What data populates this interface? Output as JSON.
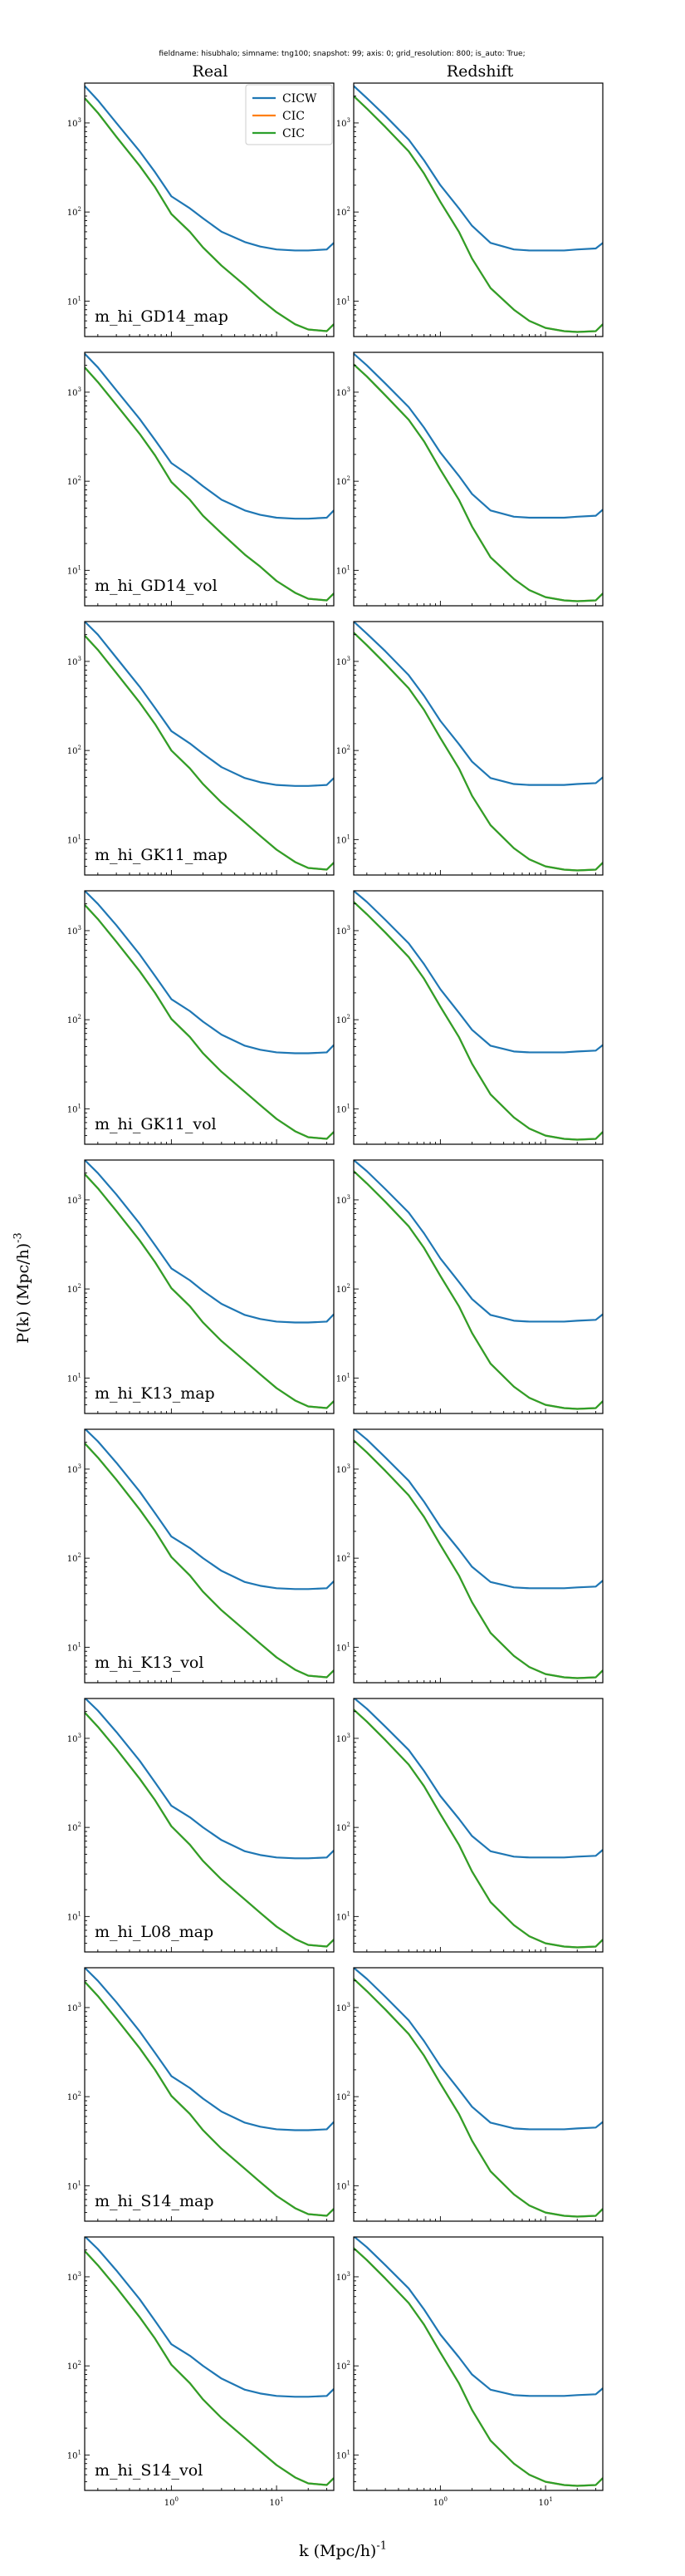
{
  "figure": {
    "suptitle": "fieldname: hisubhalo; simname: tng100; snapshot: 99; axis: 0; grid_resolution: 800; is_auto: True;",
    "column_titles": [
      "Real",
      "Redshift"
    ],
    "ylabel": "P(k) (Mpc/h)$^{-3}$",
    "xlabel": "k (Mpc/h)$^{-1}$",
    "legend": [
      {
        "label": "CICW",
        "color": "#1f77b4"
      },
      {
        "label": "CIC",
        "color": "#ff7f0e"
      },
      {
        "label": "CIC",
        "color": "#2ca02c"
      }
    ]
  },
  "chart_data": {
    "type": "line",
    "scale": {
      "x": "log",
      "y": "log"
    },
    "xlim": [
      0.15,
      35
    ],
    "ylim": [
      4,
      2800
    ],
    "xticks": [
      {
        "value": 1,
        "label": "10^0"
      },
      {
        "value": 10,
        "label": "10^1"
      }
    ],
    "yticks": [
      {
        "value": 10,
        "label": "10^1"
      },
      {
        "value": 100,
        "label": "10^2"
      },
      {
        "value": 1000,
        "label": "10^3"
      }
    ],
    "x": [
      0.15,
      0.2,
      0.3,
      0.5,
      0.7,
      1.0,
      1.5,
      2.0,
      3.0,
      5.0,
      7.0,
      10,
      15,
      20,
      30,
      35
    ],
    "rows": [
      {
        "name": "m_hi_GD14_map",
        "real": {
          "CICW": [
            2600,
            1800,
            1000,
            480,
            280,
            150,
            110,
            85,
            60,
            46,
            41,
            38,
            37,
            37,
            38,
            45
          ],
          "CIC": [
            1900,
            1300,
            700,
            330,
            190,
            95,
            60,
            40,
            25,
            15,
            10.5,
            7.5,
            5.5,
            4.8,
            4.6,
            5.5
          ]
        },
        "redshift": {
          "CICW": [
            2600,
            1900,
            1200,
            650,
            380,
            200,
            110,
            70,
            45,
            38,
            37,
            37,
            37,
            38,
            39,
            45
          ],
          "CIC": [
            2000,
            1450,
            900,
            480,
            270,
            130,
            60,
            30,
            14,
            8,
            6,
            5,
            4.6,
            4.5,
            4.6,
            5.5
          ]
        }
      },
      {
        "name": "m_hi_GD14_vol",
        "real": {
          "CICW": [
            2700,
            1900,
            1050,
            500,
            290,
            160,
            115,
            88,
            62,
            47,
            42,
            39,
            38,
            38,
            39,
            47
          ],
          "CIC": [
            1900,
            1300,
            720,
            340,
            195,
            98,
            62,
            41,
            26,
            15,
            11,
            7.6,
            5.6,
            4.8,
            4.6,
            5.5
          ]
        },
        "redshift": {
          "CICW": [
            2700,
            2000,
            1250,
            680,
            400,
            210,
            115,
            72,
            47,
            40,
            39,
            39,
            39,
            40,
            41,
            48
          ],
          "CIC": [
            2050,
            1500,
            920,
            490,
            280,
            135,
            62,
            31,
            14,
            8,
            6,
            5,
            4.6,
            4.5,
            4.6,
            5.5
          ]
        }
      },
      {
        "name": "m_hi_GK11_map",
        "real": {
          "CICW": [
            2800,
            2000,
            1100,
            520,
            300,
            165,
            120,
            92,
            65,
            49,
            44,
            41,
            40,
            40,
            41,
            49
          ],
          "CIC": [
            1950,
            1350,
            740,
            345,
            198,
            100,
            63,
            42,
            26,
            15.5,
            11,
            7.7,
            5.6,
            4.8,
            4.6,
            5.5
          ]
        },
        "redshift": {
          "CICW": [
            2800,
            2050,
            1300,
            700,
            410,
            215,
            118,
            75,
            49,
            42,
            41,
            41,
            41,
            42,
            43,
            50
          ],
          "CIC": [
            2100,
            1520,
            940,
            500,
            285,
            138,
            63,
            31,
            14.5,
            8,
            6,
            5,
            4.6,
            4.5,
            4.6,
            5.5
          ]
        }
      },
      {
        "name": "m_hi_GK11_vol",
        "real": {
          "CICW": [
            2800,
            2000,
            1150,
            540,
            310,
            170,
            125,
            95,
            68,
            51,
            46,
            43,
            42,
            42,
            43,
            52
          ],
          "CIC": [
            1950,
            1350,
            750,
            350,
            200,
            102,
            64,
            42,
            26,
            15.5,
            11,
            7.7,
            5.6,
            4.8,
            4.6,
            5.5
          ]
        },
        "redshift": {
          "CICW": [
            2800,
            2100,
            1320,
            720,
            420,
            220,
            120,
            77,
            51,
            44,
            43,
            43,
            43,
            44,
            45,
            52
          ],
          "CIC": [
            2100,
            1530,
            950,
            505,
            288,
            140,
            64,
            32,
            14.5,
            8,
            6,
            5,
            4.6,
            4.5,
            4.6,
            5.5
          ]
        }
      },
      {
        "name": "m_hi_K13_map",
        "real": {
          "CICW": [
            2800,
            2000,
            1150,
            540,
            310,
            170,
            125,
            95,
            68,
            51,
            46,
            43,
            42,
            42,
            43,
            52
          ],
          "CIC": [
            1950,
            1350,
            750,
            350,
            200,
            102,
            64,
            42,
            26,
            15.5,
            11,
            7.7,
            5.6,
            4.8,
            4.6,
            5.5
          ]
        },
        "redshift": {
          "CICW": [
            2800,
            2100,
            1320,
            720,
            420,
            220,
            120,
            77,
            51,
            44,
            43,
            43,
            43,
            44,
            45,
            52
          ],
          "CIC": [
            2100,
            1530,
            950,
            505,
            288,
            140,
            64,
            32,
            14.5,
            8,
            6,
            5,
            4.6,
            4.5,
            4.6,
            5.5
          ]
        }
      },
      {
        "name": "m_hi_K13_vol",
        "real": {
          "CICW": [
            2850,
            2050,
            1180,
            560,
            320,
            175,
            130,
            100,
            72,
            54,
            49,
            46,
            45,
            45,
            46,
            55
          ],
          "CIC": [
            1950,
            1350,
            760,
            352,
            202,
            103,
            64,
            42,
            26,
            15.5,
            11,
            7.7,
            5.6,
            4.8,
            4.6,
            5.5
          ]
        },
        "redshift": {
          "CICW": [
            2850,
            2150,
            1350,
            740,
            430,
            225,
            125,
            80,
            54,
            47,
            46,
            46,
            46,
            47,
            48,
            56
          ],
          "CIC": [
            2100,
            1540,
            955,
            508,
            290,
            141,
            64,
            32,
            14.5,
            8,
            6,
            5,
            4.6,
            4.5,
            4.6,
            5.5
          ]
        }
      },
      {
        "name": "m_hi_L08_map",
        "real": {
          "CICW": [
            2850,
            2050,
            1180,
            560,
            320,
            175,
            130,
            100,
            72,
            54,
            49,
            46,
            45,
            45,
            46,
            55
          ],
          "CIC": [
            1950,
            1350,
            760,
            352,
            202,
            103,
            64,
            42,
            26,
            15.5,
            11,
            7.7,
            5.6,
            4.8,
            4.6,
            5.5
          ]
        },
        "redshift": {
          "CICW": [
            2850,
            2150,
            1350,
            740,
            430,
            225,
            125,
            80,
            54,
            47,
            46,
            46,
            46,
            47,
            48,
            56
          ],
          "CIC": [
            2100,
            1540,
            955,
            508,
            290,
            141,
            64,
            32,
            14.5,
            8,
            6,
            5,
            4.6,
            4.5,
            4.6,
            5.5
          ]
        }
      },
      {
        "name": "m_hi_S14_map",
        "real": {
          "CICW": [
            2800,
            2000,
            1150,
            540,
            310,
            170,
            125,
            95,
            68,
            51,
            46,
            43,
            42,
            42,
            43,
            52
          ],
          "CIC": [
            1950,
            1350,
            750,
            350,
            200,
            102,
            64,
            42,
            26,
            15.5,
            11,
            7.7,
            5.6,
            4.8,
            4.6,
            5.5
          ]
        },
        "redshift": {
          "CICW": [
            2800,
            2100,
            1320,
            720,
            420,
            220,
            120,
            77,
            51,
            44,
            43,
            43,
            43,
            44,
            45,
            52
          ],
          "CIC": [
            2100,
            1530,
            950,
            505,
            288,
            140,
            64,
            32,
            14.5,
            8,
            6,
            5,
            4.6,
            4.5,
            4.6,
            5.5
          ]
        }
      },
      {
        "name": "m_hi_S14_vol",
        "real": {
          "CICW": [
            2850,
            2050,
            1180,
            560,
            320,
            175,
            130,
            100,
            72,
            54,
            49,
            46,
            45,
            45,
            46,
            55
          ],
          "CIC": [
            1950,
            1350,
            760,
            352,
            202,
            103,
            64,
            42,
            26,
            15.5,
            11,
            7.7,
            5.6,
            4.8,
            4.6,
            5.5
          ]
        },
        "redshift": {
          "CICW": [
            2850,
            2150,
            1350,
            740,
            430,
            225,
            125,
            80,
            54,
            47,
            46,
            46,
            46,
            47,
            48,
            56
          ],
          "CIC": [
            2100,
            1540,
            955,
            508,
            290,
            141,
            64,
            32,
            14.5,
            8,
            6,
            5,
            4.6,
            4.5,
            4.6,
            5.5
          ]
        }
      }
    ]
  }
}
